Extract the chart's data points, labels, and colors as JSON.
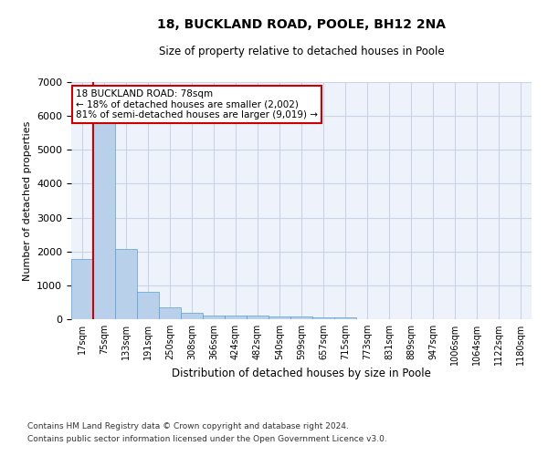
{
  "title_line1": "18, BUCKLAND ROAD, POOLE, BH12 2NA",
  "title_line2": "Size of property relative to detached houses in Poole",
  "xlabel": "Distribution of detached houses by size in Poole",
  "ylabel": "Number of detached properties",
  "bar_color": "#b8d0ea",
  "bar_edge_color": "#5a9fd4",
  "grid_color": "#c8d4e8",
  "background_color": "#eef2fa",
  "annotation_box_color": "#cc0000",
  "annotation_line1": "18 BUCKLAND ROAD: 78sqm",
  "annotation_line2": "← 18% of detached houses are smaller (2,002)",
  "annotation_line3": "81% of semi-detached houses are larger (9,019) →",
  "vline_color": "#cc0000",
  "categories": [
    "17sqm",
    "75sqm",
    "133sqm",
    "191sqm",
    "250sqm",
    "308sqm",
    "366sqm",
    "424sqm",
    "482sqm",
    "540sqm",
    "599sqm",
    "657sqm",
    "715sqm",
    "773sqm",
    "831sqm",
    "889sqm",
    "947sqm",
    "1006sqm",
    "1064sqm",
    "1122sqm",
    "1180sqm"
  ],
  "values": [
    1780,
    5800,
    2060,
    820,
    340,
    190,
    120,
    110,
    100,
    80,
    70,
    65,
    60,
    0,
    0,
    0,
    0,
    0,
    0,
    0,
    0
  ],
  "ylim": [
    0,
    7000
  ],
  "yticks": [
    0,
    1000,
    2000,
    3000,
    4000,
    5000,
    6000,
    7000
  ],
  "footnote_line1": "Contains HM Land Registry data © Crown copyright and database right 2024.",
  "footnote_line2": "Contains public sector information licensed under the Open Government Licence v3.0.",
  "bar_width": 1.0,
  "vline_position": 0.5
}
